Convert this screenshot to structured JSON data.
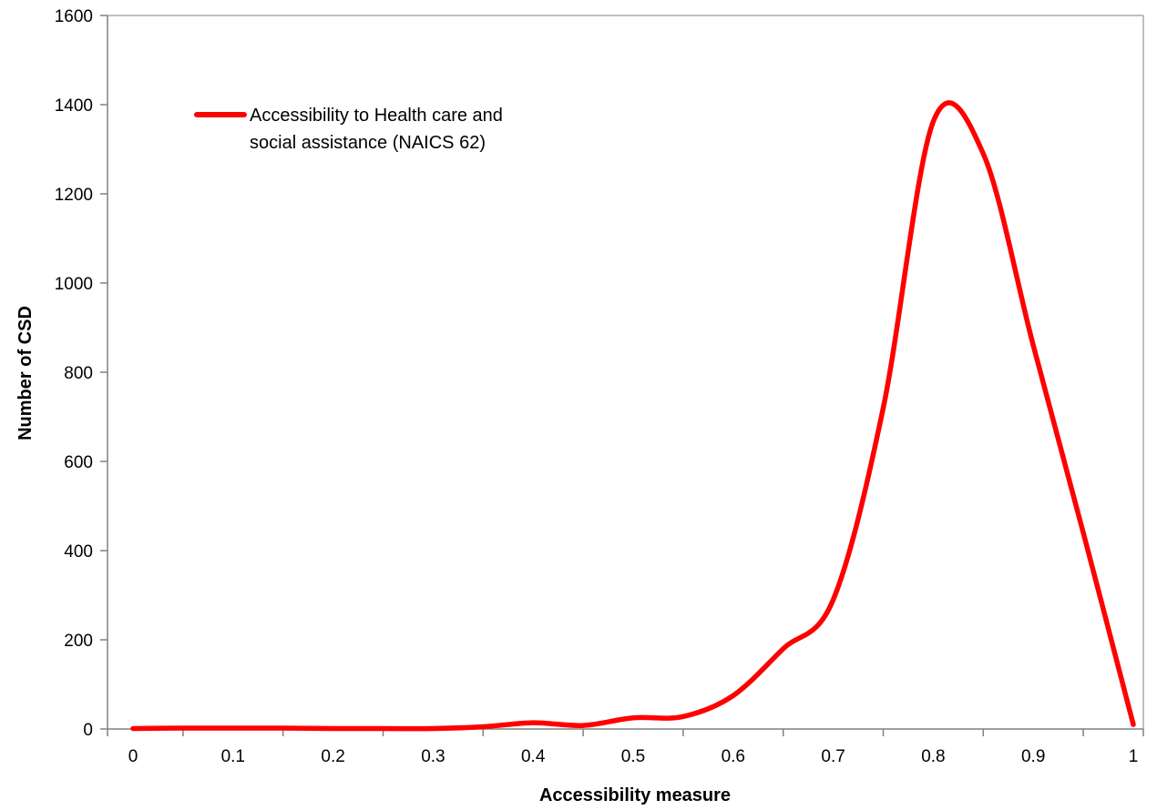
{
  "chart_data": {
    "type": "line",
    "title": "",
    "xlabel": "Accessibility measure",
    "ylabel": "Number of CSD",
    "xlim": [
      0,
      1
    ],
    "ylim": [
      0,
      1600
    ],
    "x_ticks": [
      "0",
      "0.1",
      "0.2",
      "0.3",
      "0.4",
      "0.5",
      "0.6",
      "0.7",
      "0.8",
      "0.9",
      "1"
    ],
    "y_ticks": [
      "0",
      "200",
      "400",
      "600",
      "800",
      "1000",
      "1200",
      "1400",
      "1600"
    ],
    "grid": false,
    "legend_position": "top-left",
    "series": [
      {
        "name": "Accessibility to Health care and social assistance (NAICS 62)",
        "color": "#ff0000",
        "x": [
          0,
          0.05,
          0.1,
          0.15,
          0.2,
          0.25,
          0.3,
          0.35,
          0.4,
          0.45,
          0.5,
          0.55,
          0.6,
          0.65,
          0.7,
          0.75,
          0.8,
          0.85,
          0.9,
          0.95,
          1
        ],
        "y": [
          1,
          2,
          2,
          2,
          1,
          1,
          1,
          5,
          14,
          8,
          25,
          28,
          75,
          180,
          290,
          720,
          1362,
          1290,
          860,
          440,
          10
        ]
      }
    ],
    "legend": {
      "line1": "Accessibility to Health care and",
      "line2": "social assistance (NAICS 62)"
    }
  }
}
